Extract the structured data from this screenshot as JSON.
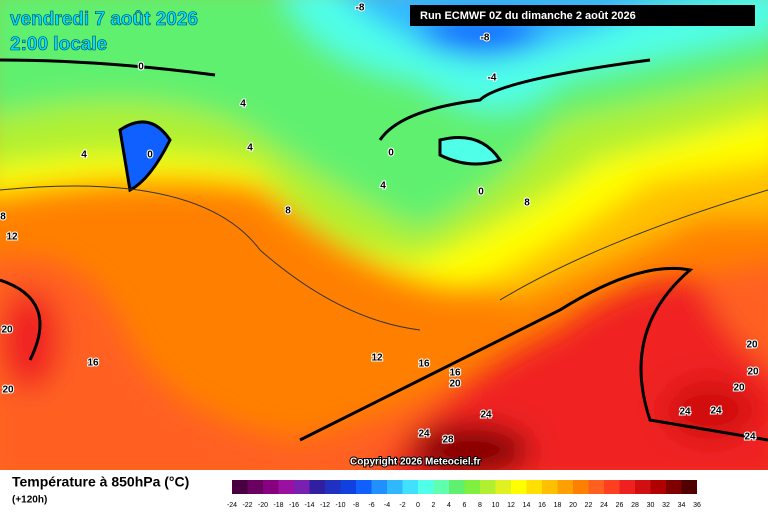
{
  "header": {
    "date": "vendredi 7 août 2026",
    "time": "2:00 locale",
    "run": "Run ECMWF 0Z du dimanche 2 août 2026"
  },
  "copyright": "Copyright 2026 Meteociel.fr",
  "legend": {
    "title": "Température à 850hPa (°C)",
    "lead": "(+120h)",
    "labels": [
      -24,
      -22,
      -20,
      -18,
      -16,
      -14,
      -12,
      -10,
      -8,
      -6,
      -4,
      -2,
      0,
      2,
      4,
      6,
      8,
      10,
      12,
      14,
      16,
      18,
      20,
      22,
      24,
      26,
      28,
      30,
      32,
      34,
      36
    ],
    "colors": [
      "#4a0040",
      "#6a0060",
      "#860080",
      "#9a10a0",
      "#7a20b0",
      "#3020a0",
      "#2030c0",
      "#1040e0",
      "#1060ff",
      "#2090ff",
      "#30b8ff",
      "#40e0ff",
      "#50ffe8",
      "#60ffb0",
      "#60f070",
      "#80f040",
      "#b0f030",
      "#e0f020",
      "#ffff00",
      "#ffe000",
      "#ffc000",
      "#ffa000",
      "#ff8000",
      "#ff6020",
      "#ff4020",
      "#f02020",
      "#d01010",
      "#b00000",
      "#800000",
      "#500000"
    ]
  },
  "map": {
    "contour_labels": [
      -8,
      -8,
      -4,
      0,
      4,
      4,
      4,
      0,
      0,
      4,
      0,
      8,
      8,
      8,
      12,
      20,
      20,
      16,
      12,
      16,
      16,
      20,
      24,
      24,
      28,
      20,
      20,
      20,
      24,
      24,
      24
    ]
  }
}
